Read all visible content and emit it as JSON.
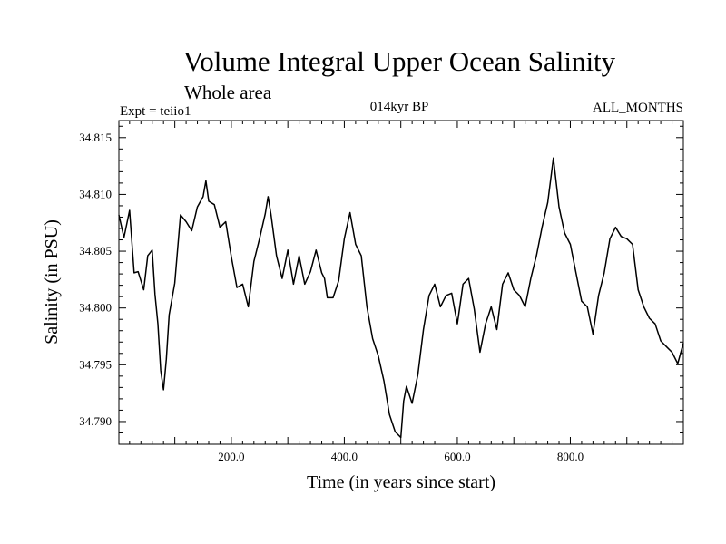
{
  "chart_data": {
    "type": "line",
    "title": "Volume Integral Upper Ocean Salinity",
    "subtitle": "Whole area",
    "experiment": "Expt = teiio1",
    "period": "014kyr BP",
    "months": "ALL_MONTHS",
    "xlabel": "Time (in years since start)",
    "ylabel": "Salinity (in PSU)",
    "xlim": [
      1,
      1000
    ],
    "ylim": [
      34.788,
      34.8165
    ],
    "x_ticks": [
      200,
      400,
      600,
      800
    ],
    "x_tick_labels": [
      "200.0",
      "400.0",
      "600.0",
      "800.0"
    ],
    "y_ticks": [
      34.79,
      34.795,
      34.8,
      34.805,
      34.81,
      34.815
    ],
    "y_tick_labels": [
      "34.790",
      "34.795",
      "34.800",
      "34.805",
      "34.810",
      "34.815"
    ],
    "grid": false,
    "series": [
      {
        "color": "#000000",
        "x": [
          1,
          10,
          20,
          28,
          35,
          45,
          52,
          60,
          65,
          70,
          75,
          80,
          85,
          90,
          100,
          110,
          120,
          130,
          140,
          150,
          155,
          160,
          170,
          180,
          190,
          200,
          210,
          220,
          230,
          240,
          250,
          260,
          265,
          270,
          280,
          290,
          300,
          310,
          320,
          330,
          340,
          350,
          360,
          365,
          370,
          380,
          390,
          400,
          410,
          420,
          430,
          440,
          450,
          460,
          470,
          480,
          490,
          500,
          505,
          510,
          520,
          530,
          540,
          550,
          560,
          570,
          580,
          590,
          600,
          610,
          620,
          630,
          640,
          650,
          660,
          670,
          680,
          690,
          700,
          710,
          720,
          730,
          740,
          750,
          760,
          770,
          780,
          790,
          800,
          810,
          820,
          830,
          840,
          850,
          860,
          870,
          880,
          890,
          900,
          910,
          920,
          930,
          940,
          950,
          960,
          970,
          980,
          990,
          1000
        ],
        "values": [
          34.8082,
          34.8062,
          34.8086,
          34.8031,
          34.8032,
          34.8016,
          34.8046,
          34.8051,
          34.8012,
          34.7986,
          34.7945,
          34.7928,
          34.7955,
          34.7994,
          34.8022,
          34.8082,
          34.8076,
          34.8068,
          34.8089,
          34.8098,
          34.8112,
          34.8094,
          34.8091,
          34.8071,
          34.8076,
          34.8045,
          34.8018,
          34.8021,
          34.8001,
          34.8041,
          34.8061,
          34.8083,
          34.8098,
          34.8083,
          34.8046,
          34.8026,
          34.8051,
          34.8021,
          34.8046,
          34.8021,
          34.8032,
          34.8051,
          34.8031,
          34.8026,
          34.8009,
          34.8009,
          34.8024,
          34.8061,
          34.8084,
          34.8056,
          34.8046,
          34.8001,
          34.7973,
          34.7958,
          34.7936,
          34.7906,
          34.7891,
          34.7886,
          34.7918,
          34.7931,
          34.7916,
          34.7941,
          34.7981,
          34.8011,
          34.8021,
          34.8001,
          34.8011,
          34.8013,
          34.7986,
          34.8021,
          34.8026,
          34.7999,
          34.7961,
          34.7986,
          34.8001,
          34.7981,
          34.8021,
          34.8031,
          34.8016,
          34.8011,
          34.8001,
          34.8026,
          34.8046,
          34.8071,
          34.8093,
          34.8132,
          34.8089,
          34.8066,
          34.8056,
          34.8031,
          34.8006,
          34.8001,
          34.7977,
          34.8011,
          34.8031,
          34.8061,
          34.8071,
          34.8063,
          34.8061,
          34.8056,
          34.8016,
          34.8001,
          34.7991,
          34.7986,
          34.7971,
          34.7966,
          34.7961,
          34.7951,
          34.7969
        ]
      }
    ]
  }
}
